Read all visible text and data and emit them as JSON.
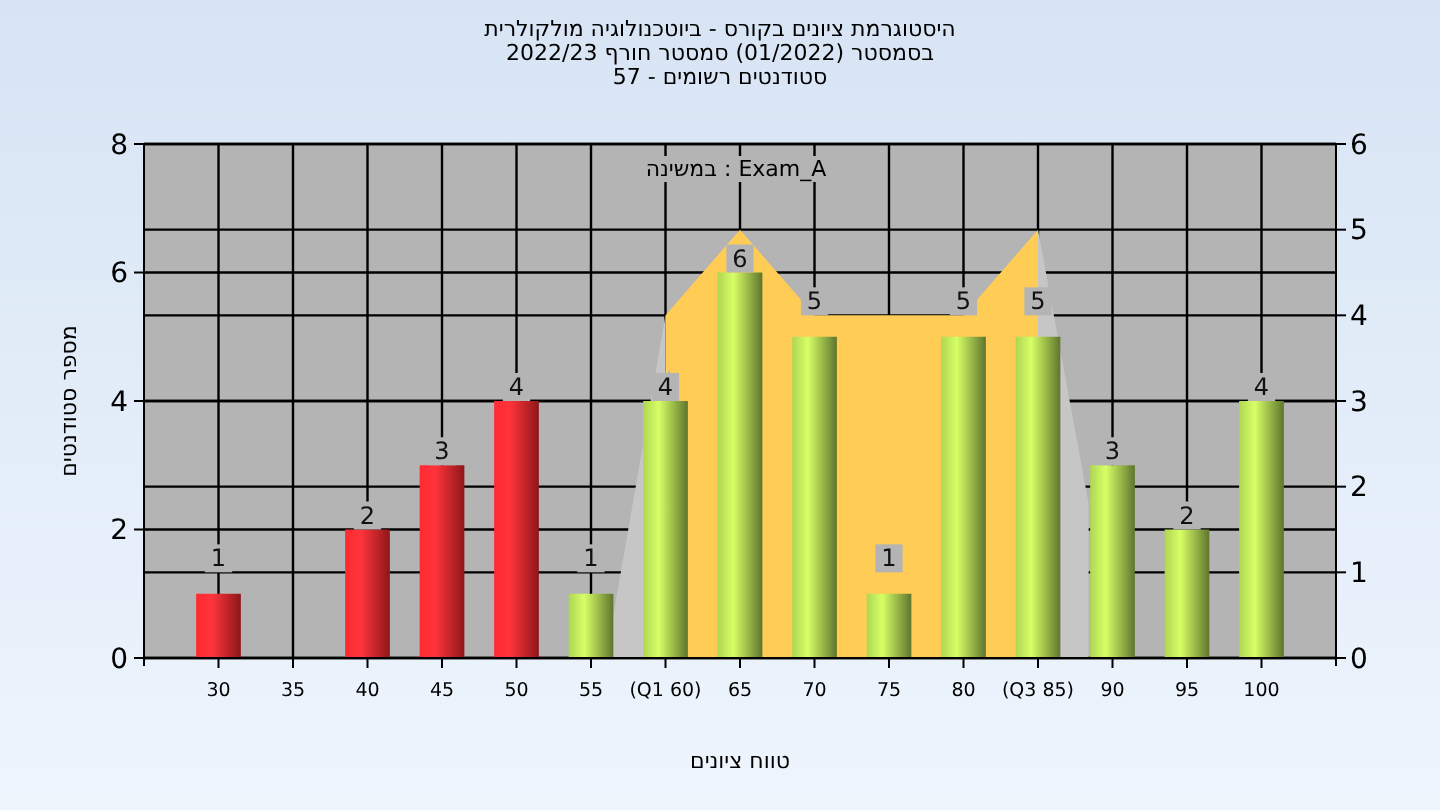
{
  "chart_data": {
    "type": "bar",
    "title": "היסטוגרמת ציונים בקורס - ביוטכנולוגיה מולקולרית",
    "subtitle": "בסמסטר  (01/2022)  סמסטר חורף 2022/23",
    "annotations": [
      "סטודנטים רשומים - 57",
      "במשינה : Exam_A"
    ],
    "xlabel": "טווח ציונים",
    "ylabel": "מספר סטודנטים",
    "xlim": [
      25,
      105
    ],
    "xticks": [
      30,
      35,
      40,
      45,
      50,
      55,
      {
        "value": 60,
        "label": "(Q1 60)"
      },
      65,
      70,
      75,
      80,
      {
        "value": 85,
        "label": "(Q3 85)"
      },
      90,
      95,
      100
    ],
    "ylim": [
      0,
      8
    ],
    "yticks": [
      0,
      2,
      4,
      6,
      8
    ],
    "y2lim": [
      0,
      6
    ],
    "y2ticks": [
      0,
      1,
      2,
      3,
      4,
      5,
      6
    ],
    "grid": true,
    "series": [
      {
        "type": "area",
        "axis": "y2",
        "color": "#c6c6c6",
        "x": [
          56,
          60
        ],
        "values": [
          0,
          4
        ]
      },
      {
        "type": "area",
        "axis": "y2",
        "color": "#c6c6c6",
        "x": [
          85,
          88.4
        ],
        "values": [
          5,
          1.8
        ]
      },
      {
        "type": "area",
        "axis": "y2",
        "color": "#ffcc55",
        "x": [
          60,
          65,
          70,
          80,
          85
        ],
        "values": [
          4,
          5,
          4,
          4,
          5
        ]
      },
      {
        "x": [
          30,
          35,
          40,
          45,
          50,
          55,
          60,
          65,
          70,
          75,
          80,
          85,
          90,
          95,
          100
        ],
        "values": [
          1,
          0,
          2,
          3,
          4,
          1,
          4,
          6,
          5,
          1,
          5,
          5,
          3,
          2,
          4
        ],
        "colors": [
          "#e8262b",
          "#e8262b",
          "#e8262b",
          "#e8262b",
          "#e8262b",
          "#9cc04a",
          "#9cc04a",
          "#9cc04a",
          "#9cc04a",
          "#9cc04a",
          "#9cc04a",
          "#9cc04a",
          "#9cc04a",
          "#9cc04a",
          "#9cc04a"
        ],
        "value_labels": [
          "1",
          null,
          "2",
          "3",
          "4",
          "1",
          "4",
          "6",
          "5",
          "1",
          "5",
          "5",
          "3",
          "2",
          "4"
        ]
      }
    ]
  }
}
